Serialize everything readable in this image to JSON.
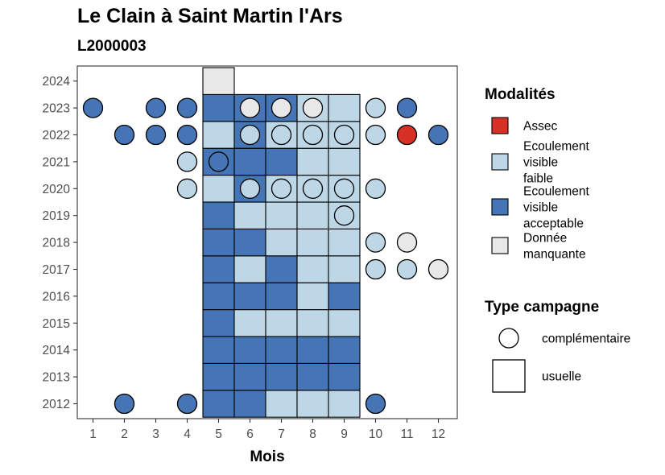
{
  "title": "Le Clain à Saint Martin l'Ars",
  "subtitle": "L2000003",
  "chart_data": {
    "type": "heatmap",
    "xlabel": "Mois",
    "ylabel": "",
    "x_ticks": [
      1,
      2,
      3,
      4,
      5,
      6,
      7,
      8,
      9,
      10,
      11,
      12
    ],
    "y_ticks": [
      2012,
      2013,
      2014,
      2015,
      2016,
      2017,
      2018,
      2019,
      2020,
      2021,
      2022,
      2023,
      2024
    ],
    "grid": false,
    "legend_position": "right",
    "color_legend": {
      "title": "Modalités",
      "items": [
        {
          "key": "assec",
          "label_lines": [
            "Assec"
          ],
          "color": "#d73027"
        },
        {
          "key": "faible",
          "label_lines": [
            "Ecoulement",
            "visible",
            "faible"
          ],
          "color": "#bdd7e7"
        },
        {
          "key": "acceptable",
          "label_lines": [
            "Ecoulement",
            "visible",
            "acceptable"
          ],
          "color": "#4575b4"
        },
        {
          "key": "manquante",
          "label_lines": [
            "Donnée",
            "manquante"
          ],
          "color": "#e8e8e8"
        }
      ]
    },
    "shape_legend": {
      "title": "Type campagne",
      "items": [
        {
          "key": "complementaire",
          "label": "complémentaire",
          "shape": "circle"
        },
        {
          "key": "usuelle",
          "label": "usuelle",
          "shape": "square"
        }
      ]
    },
    "usuelle": [
      {
        "year": 2012,
        "values": {
          "5": "acceptable",
          "6": "acceptable",
          "7": "faible",
          "8": "faible",
          "9": "faible"
        }
      },
      {
        "year": 2013,
        "values": {
          "5": "acceptable",
          "6": "acceptable",
          "7": "acceptable",
          "8": "acceptable",
          "9": "acceptable"
        }
      },
      {
        "year": 2014,
        "values": {
          "5": "acceptable",
          "6": "acceptable",
          "7": "acceptable",
          "8": "acceptable",
          "9": "acceptable"
        }
      },
      {
        "year": 2015,
        "values": {
          "5": "acceptable",
          "6": "faible",
          "7": "faible",
          "8": "faible",
          "9": "faible"
        }
      },
      {
        "year": 2016,
        "values": {
          "5": "acceptable",
          "6": "acceptable",
          "7": "acceptable",
          "8": "faible",
          "9": "acceptable"
        }
      },
      {
        "year": 2017,
        "values": {
          "5": "acceptable",
          "6": "faible",
          "7": "acceptable",
          "8": "faible",
          "9": "faible"
        }
      },
      {
        "year": 2018,
        "values": {
          "5": "acceptable",
          "6": "acceptable",
          "7": "faible",
          "8": "faible",
          "9": "faible"
        }
      },
      {
        "year": 2019,
        "values": {
          "5": "acceptable",
          "6": "faible",
          "7": "faible",
          "8": "faible",
          "9": "faible"
        }
      },
      {
        "year": 2020,
        "values": {
          "5": "faible",
          "6": "acceptable",
          "7": "faible",
          "8": "faible",
          "9": "faible"
        }
      },
      {
        "year": 2021,
        "values": {
          "5": "acceptable",
          "6": "acceptable",
          "7": "acceptable",
          "8": "faible",
          "9": "faible"
        }
      },
      {
        "year": 2022,
        "values": {
          "5": "faible",
          "6": "acceptable",
          "7": "faible",
          "8": "faible",
          "9": "faible"
        }
      },
      {
        "year": 2023,
        "values": {
          "5": "acceptable",
          "6": "acceptable",
          "7": "acceptable",
          "8": "faible",
          "9": "faible"
        }
      },
      {
        "year": 2024,
        "values": {
          "5": "manquante"
        }
      }
    ],
    "complementaire": [
      {
        "year": 2012,
        "month": 2,
        "value": "acceptable"
      },
      {
        "year": 2012,
        "month": 4,
        "value": "acceptable"
      },
      {
        "year": 2012,
        "month": 10,
        "value": "acceptable"
      },
      {
        "year": 2017,
        "month": 10,
        "value": "faible"
      },
      {
        "year": 2017,
        "month": 11,
        "value": "faible"
      },
      {
        "year": 2017,
        "month": 12,
        "value": "manquante"
      },
      {
        "year": 2018,
        "month": 10,
        "value": "faible"
      },
      {
        "year": 2018,
        "month": 11,
        "value": "manquante"
      },
      {
        "year": 2019,
        "month": 9,
        "value": "faible"
      },
      {
        "year": 2020,
        "month": 4,
        "value": "faible"
      },
      {
        "year": 2020,
        "month": 6,
        "value": "faible"
      },
      {
        "year": 2020,
        "month": 7,
        "value": "faible"
      },
      {
        "year": 2020,
        "month": 8,
        "value": "faible"
      },
      {
        "year": 2020,
        "month": 9,
        "value": "faible"
      },
      {
        "year": 2020,
        "month": 10,
        "value": "faible"
      },
      {
        "year": 2021,
        "month": 4,
        "value": "faible"
      },
      {
        "year": 2021,
        "month": 5,
        "value": "acceptable"
      },
      {
        "year": 2022,
        "month": 2,
        "value": "acceptable"
      },
      {
        "year": 2022,
        "month": 3,
        "value": "acceptable"
      },
      {
        "year": 2022,
        "month": 4,
        "value": "acceptable"
      },
      {
        "year": 2022,
        "month": 6,
        "value": "faible"
      },
      {
        "year": 2022,
        "month": 7,
        "value": "faible"
      },
      {
        "year": 2022,
        "month": 8,
        "value": "faible"
      },
      {
        "year": 2022,
        "month": 9,
        "value": "faible"
      },
      {
        "year": 2022,
        "month": 10,
        "value": "faible"
      },
      {
        "year": 2022,
        "month": 11,
        "value": "assec"
      },
      {
        "year": 2022,
        "month": 12,
        "value": "acceptable"
      },
      {
        "year": 2023,
        "month": 1,
        "value": "acceptable"
      },
      {
        "year": 2023,
        "month": 3,
        "value": "acceptable"
      },
      {
        "year": 2023,
        "month": 4,
        "value": "acceptable"
      },
      {
        "year": 2023,
        "month": 6,
        "value": "manquante"
      },
      {
        "year": 2023,
        "month": 7,
        "value": "manquante"
      },
      {
        "year": 2023,
        "month": 8,
        "value": "manquante"
      },
      {
        "year": 2023,
        "month": 10,
        "value": "faible"
      },
      {
        "year": 2023,
        "month": 11,
        "value": "acceptable"
      }
    ]
  }
}
